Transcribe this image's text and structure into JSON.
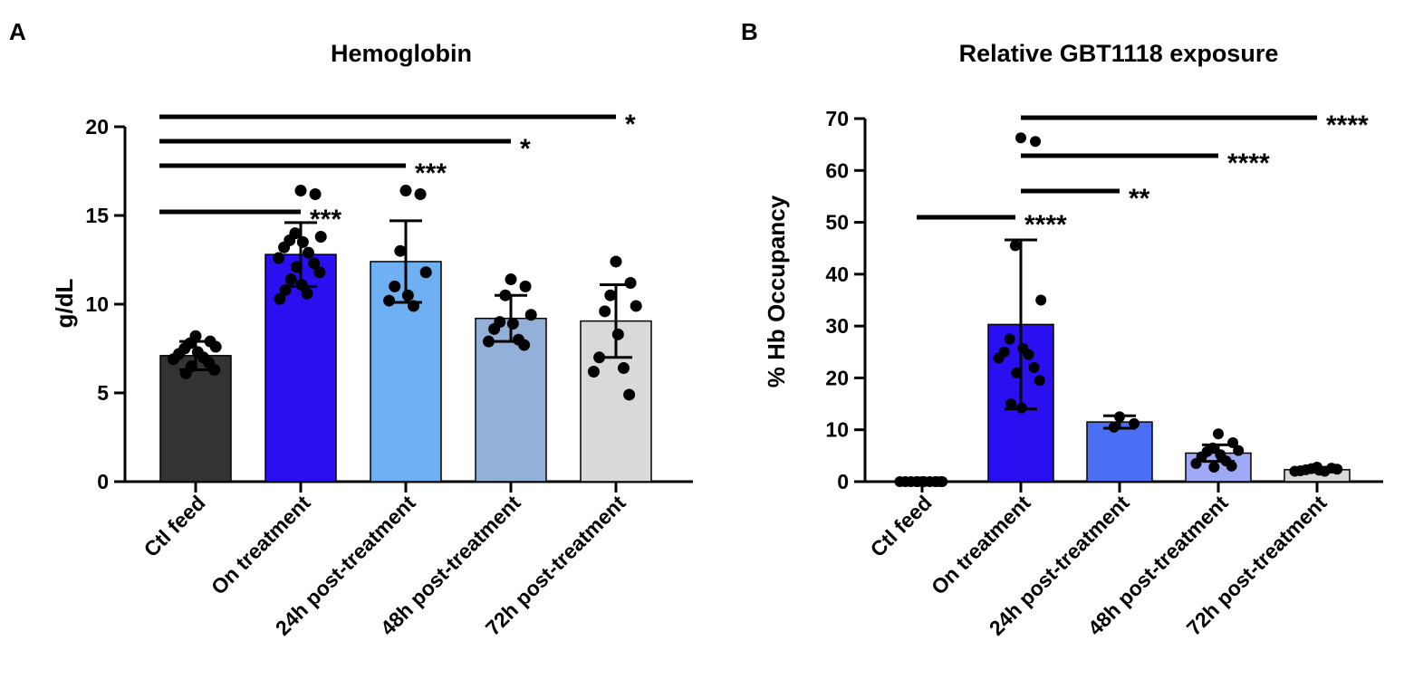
{
  "chart_data": [
    {
      "panel": "A",
      "type": "bar",
      "title": "Hemoglobin",
      "ylabel": "g/dL",
      "xlabel": "",
      "ylim": [
        0,
        20
      ],
      "yticks": [
        0,
        5,
        10,
        15,
        20
      ],
      "categories": [
        "Ctl feed",
        "On treatment",
        "24h post-treatment",
        "48h post-treatment",
        "72h post-treatment"
      ],
      "values": [
        7.1,
        12.8,
        12.4,
        9.2,
        9.05
      ],
      "sd": [
        0.8,
        1.8,
        2.3,
        1.3,
        2.05
      ],
      "colors": [
        "#333333",
        "#2a10f0",
        "#6fb0f5",
        "#93b0d9",
        "#d9d9d9"
      ],
      "points": [
        [
          8.2,
          7.9,
          7.8,
          7.6,
          7.5,
          7.3,
          7.2,
          7.0,
          6.9,
          6.7,
          6.5,
          6.3,
          6.1
        ],
        [
          16.4,
          16.2,
          14.0,
          13.8,
          13.6,
          13.5,
          13.2,
          12.9,
          12.6,
          12.3,
          12.1,
          11.8,
          11.4,
          11.1,
          10.8,
          10.6,
          10.3
        ],
        [
          16.4,
          16.2,
          13.0,
          11.8,
          11.0,
          10.5,
          10.2,
          9.9
        ],
        [
          11.4,
          11.0,
          10.5,
          9.4,
          9.0,
          8.9,
          8.6,
          8.0,
          7.9,
          7.7
        ],
        [
          12.4,
          11.2,
          10.5,
          9.9,
          9.6,
          8.3,
          7.0,
          6.4,
          6.2,
          4.9
        ]
      ],
      "significance": [
        {
          "from": "Ctl feed",
          "to": "On treatment",
          "label": "***"
        },
        {
          "from": "Ctl feed",
          "to": "24h post-treatment",
          "label": "***"
        },
        {
          "from": "Ctl feed",
          "to": "48h post-treatment",
          "label": "*"
        },
        {
          "from": "Ctl feed",
          "to": "72h post-treatment",
          "label": "*"
        }
      ]
    },
    {
      "panel": "B",
      "type": "bar",
      "title": "Relative GBT1118 exposure",
      "ylabel": "% Hb Occupancy",
      "xlabel": "",
      "ylim": [
        0,
        70
      ],
      "yticks": [
        0,
        10,
        20,
        30,
        40,
        50,
        60,
        70
      ],
      "categories": [
        "Ctl feed",
        "On treatment",
        "24h post-treatment",
        "48h post-treatment",
        "72h post-treatment"
      ],
      "values": [
        0,
        30.3,
        11.5,
        5.5,
        2.3
      ],
      "sd": [
        0,
        16.3,
        1.2,
        1.6,
        0.4
      ],
      "colors": [
        "#333333",
        "#2a10f0",
        "#4a6ff5",
        "#9ea8f5",
        "#d9d9d9"
      ],
      "points": [
        [
          0,
          0,
          0,
          0,
          0,
          0,
          0,
          0,
          0,
          0,
          0,
          0
        ],
        [
          66.3,
          65.6,
          45.5,
          35.0,
          27.5,
          25.7,
          25.0,
          24.5,
          23.8,
          22.0,
          21.0,
          19.5,
          15.0,
          14.2
        ],
        [
          12.5,
          11.2,
          10.5
        ],
        [
          9.2,
          7.5,
          6.5,
          6.0,
          5.8,
          5.2,
          4.8,
          4.0,
          3.5,
          3.0,
          2.8
        ],
        [
          2.8,
          2.6,
          2.5,
          2.4,
          2.3,
          2.2,
          2.1,
          2.0,
          2.0
        ]
      ],
      "significance": [
        {
          "from": "Ctl feed",
          "to": "On treatment",
          "label": "****"
        },
        {
          "from": "On treatment",
          "to": "24h post-treatment",
          "label": "**"
        },
        {
          "from": "On treatment",
          "to": "48h post-treatment",
          "label": "****"
        },
        {
          "from": "On treatment",
          "to": "72h post-treatment",
          "label": "****"
        }
      ]
    }
  ]
}
